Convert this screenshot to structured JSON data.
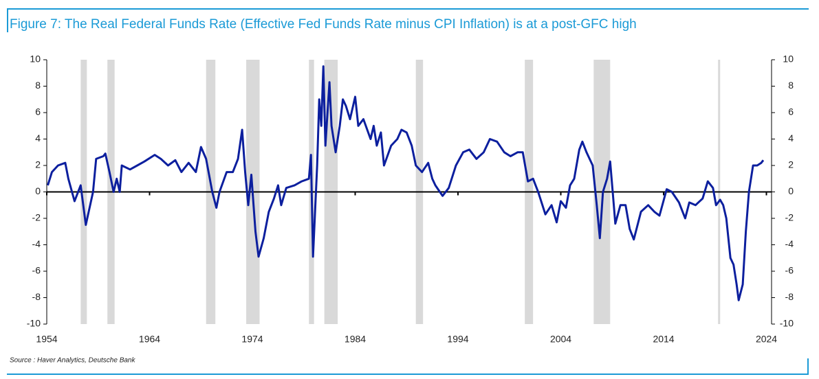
{
  "chart_data": {
    "type": "line",
    "title": "Figure 7: The Real Federal Funds Rate (Effective Fed Funds Rate minus CPI Inflation) is at a post-GFC high",
    "source": "Source : Haver Analytics, Deutsche Bank",
    "xlim": [
      1954,
      2024.5
    ],
    "xticks": [
      1954,
      1964,
      1974,
      1984,
      1994,
      2004,
      2014,
      2024
    ],
    "ylim": [
      -10,
      10
    ],
    "yticks": [
      -10,
      -8,
      -6,
      -4,
      -2,
      0,
      2,
      4,
      6,
      8,
      10
    ],
    "y2lim": [
      -10,
      10
    ],
    "y2ticks": [
      -10,
      -8,
      -6,
      -4,
      -2,
      0,
      2,
      4,
      6,
      8,
      10
    ],
    "shaded_periods": [
      [
        1957.3,
        1957.9
      ],
      [
        1959.9,
        1960.6
      ],
      [
        1969.5,
        1970.4
      ],
      [
        1973.4,
        1974.7
      ],
      [
        1979.5,
        1980.0
      ],
      [
        1981.0,
        1982.3
      ],
      [
        1989.9,
        1990.6
      ],
      [
        2000.5,
        2001.3
      ],
      [
        2007.2,
        2008.8
      ],
      [
        2019.3,
        2019.5
      ]
    ],
    "shade_color": "#d9d9d9",
    "series": [
      {
        "color": "#0c1f9e",
        "x": [
          1954.1,
          1954.5,
          1955.1,
          1955.8,
          1956.1,
          1956.7,
          1957.3,
          1957.8,
          1958.5,
          1958.8,
          1959.5,
          1959.7,
          1960.1,
          1960.5,
          1960.8,
          1961.1,
          1961.3,
          1962.1,
          1962.8,
          1963.5,
          1964.5,
          1965.1,
          1965.8,
          1966.5,
          1967.1,
          1967.8,
          1968.5,
          1969.0,
          1969.5,
          1970.1,
          1970.5,
          1970.8,
          1971.5,
          1972.1,
          1972.6,
          1973.0,
          1973.3,
          1973.6,
          1973.9,
          1974.3,
          1974.6,
          1975.1,
          1975.6,
          1976.1,
          1976.5,
          1976.8,
          1977.3,
          1978.1,
          1978.8,
          1979.5,
          1979.7,
          1979.9,
          1980.3,
          1980.5,
          1980.7,
          1980.9,
          1981.1,
          1981.5,
          1981.7,
          1982.1,
          1982.5,
          1982.8,
          1983.1,
          1983.5,
          1984.0,
          1984.3,
          1984.8,
          1985.5,
          1985.8,
          1986.1,
          1986.5,
          1986.8,
          1987.5,
          1988.1,
          1988.5,
          1989.0,
          1989.5,
          1989.9,
          1990.5,
          1991.1,
          1991.5,
          1991.8,
          1992.5,
          1993.1,
          1993.8,
          1994.5,
          1995.1,
          1995.8,
          1996.5,
          1997.1,
          1997.8,
          1998.5,
          1999.1,
          1999.8,
          2000.3,
          2000.8,
          2001.3,
          2001.8,
          2002.5,
          2003.1,
          2003.6,
          2004.0,
          2004.5,
          2004.9,
          2005.3,
          2005.8,
          2006.1,
          2006.5,
          2007.1,
          2007.5,
          2007.8,
          2008.1,
          2008.5,
          2008.8,
          2009.1,
          2009.3,
          2009.8,
          2010.3,
          2010.7,
          2011.1,
          2011.8,
          2012.5,
          2013.1,
          2013.6,
          2014.3,
          2014.8,
          2015.5,
          2016.1,
          2016.5,
          2017.1,
          2017.8,
          2018.3,
          2018.8,
          2019.1,
          2019.5,
          2019.8,
          2020.1,
          2020.5,
          2020.8,
          2021.1,
          2021.3,
          2021.7,
          2022.0,
          2022.3,
          2022.7,
          2023.1,
          2023.5,
          2023.7
        ],
        "values": [
          0.5,
          1.5,
          2.0,
          2.2,
          1.0,
          -0.7,
          0.5,
          -2.5,
          0,
          2.5,
          2.7,
          2.9,
          1.5,
          0,
          1.0,
          0,
          2.0,
          1.7,
          2.0,
          2.3,
          2.8,
          2.5,
          2.0,
          2.4,
          1.5,
          2.2,
          1.5,
          3.4,
          2.5,
          0,
          -1.2,
          0,
          1.5,
          1.5,
          2.5,
          4.7,
          1.5,
          -1.0,
          1.3,
          -3.0,
          -4.9,
          -3.5,
          -1.5,
          -0.5,
          0.5,
          -1.0,
          0.3,
          0.5,
          0.8,
          1.0,
          2.8,
          -4.9,
          2.0,
          7.0,
          5.0,
          9.5,
          3.5,
          8.3,
          5.0,
          3.0,
          5.0,
          7.0,
          6.5,
          5.5,
          7.2,
          5.0,
          5.5,
          4.0,
          5.0,
          3.5,
          4.5,
          2.0,
          3.5,
          4.0,
          4.7,
          4.5,
          3.5,
          2.0,
          1.5,
          2.2,
          1.0,
          0.5,
          -0.3,
          0.3,
          2.0,
          3.0,
          3.2,
          2.5,
          3.0,
          4.0,
          3.8,
          3.0,
          2.7,
          3.0,
          3.0,
          0.8,
          1.0,
          0,
          -1.7,
          -1.0,
          -2.3,
          -0.7,
          -1.2,
          0.5,
          1.0,
          3.2,
          3.8,
          3.0,
          2.0,
          -1.0,
          -3.5,
          0,
          1.0,
          2.3,
          -0.5,
          -2.4,
          -1.0,
          -1.0,
          -2.8,
          -3.6,
          -1.5,
          -1.0,
          -1.5,
          -1.8,
          0.2,
          0,
          -0.8,
          -2.0,
          -0.8,
          -1.0,
          -0.5,
          0.8,
          0.3,
          -1.0,
          -0.6,
          -1.0,
          -2.0,
          -5.0,
          -5.5,
          -7.0,
          -8.2,
          -7.0,
          -3.0,
          0,
          2.0,
          2.0,
          2.2,
          2.4
        ]
      }
    ]
  }
}
